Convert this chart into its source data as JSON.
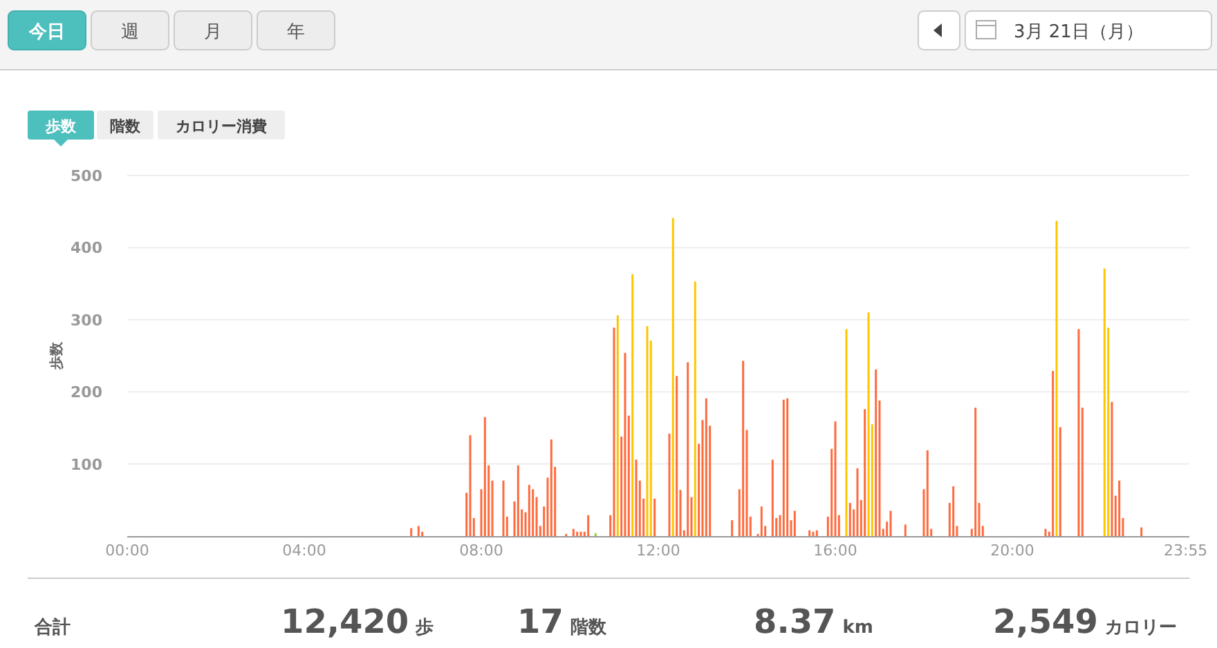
{
  "chart_data": {
    "type": "bar",
    "ylabel": "歩数",
    "xlim": [
      0,
      24
    ],
    "ylim": [
      0,
      500
    ],
    "xticks": [
      {
        "value": 0,
        "label": "00:00"
      },
      {
        "value": 4,
        "label": "04:00"
      },
      {
        "value": 8,
        "label": "08:00"
      },
      {
        "value": 12,
        "label": "12:00"
      },
      {
        "value": 16,
        "label": "16:00"
      },
      {
        "value": 20,
        "label": "20:00"
      },
      {
        "value": 23.917,
        "label": "23:55"
      }
    ],
    "yticks": [
      100,
      200,
      300,
      400,
      500
    ],
    "grid": "y",
    "series": [
      {
        "color": "#ff6a3d",
        "x": [
          6.417,
          6.583,
          6.667,
          7.667,
          7.75,
          7.833,
          8,
          8.083,
          8.167,
          8.25,
          8.5,
          8.583,
          8.75,
          8.833,
          8.917,
          9,
          9.083,
          9.167,
          9.25,
          9.333,
          9.417,
          9.5,
          9.583,
          9.667,
          9.917,
          10.083,
          10.167,
          10.25,
          10.333,
          10.417,
          10.917,
          11,
          11.167,
          11.25,
          11.333,
          11.5,
          11.583,
          11.667,
          11.917,
          12.25,
          12.417,
          12.5,
          12.583,
          12.667,
          12.75,
          12.917,
          13,
          13.083,
          13.167,
          13.667,
          13.833,
          13.917,
          14,
          14.083,
          14.25,
          14.333,
          14.417,
          14.583,
          14.667,
          14.75,
          14.833,
          14.917,
          15,
          15.083,
          15.417,
          15.5,
          15.583,
          15.833,
          15.917,
          16,
          16.083,
          16.333,
          16.417,
          16.5,
          16.583,
          16.667,
          16.917,
          17,
          17.083,
          17.167,
          17.25,
          17.583,
          18,
          18.083,
          18.167,
          18.583,
          18.667,
          18.75,
          19.083,
          19.167,
          19.25,
          19.333,
          20.75,
          20.833,
          20.917,
          21.083,
          21.5,
          21.583,
          22.25,
          22.333,
          22.417,
          22.5,
          22.917
        ],
        "values": [
          11,
          14,
          6,
          60,
          140,
          25,
          65,
          165,
          98,
          77,
          77,
          27,
          48,
          98,
          37,
          33,
          71,
          65,
          54,
          14,
          41,
          81,
          134,
          96,
          3,
          10,
          6,
          6,
          6,
          29,
          29,
          289,
          138,
          254,
          167,
          106,
          77,
          52,
          52,
          142,
          222,
          64,
          8,
          241,
          54,
          128,
          161,
          191,
          153,
          22,
          65,
          243,
          147,
          27,
          3,
          41,
          14,
          106,
          25,
          29,
          189,
          191,
          22,
          35,
          8,
          6,
          8,
          27,
          121,
          159,
          29,
          46,
          37,
          94,
          50,
          176,
          231,
          188,
          10,
          20,
          35,
          16,
          65,
          119,
          10,
          46,
          69,
          14,
          10,
          178,
          46,
          14,
          10,
          6,
          229,
          151,
          287,
          178,
          186,
          56,
          77,
          25,
          12
        ]
      },
      {
        "color": "#ffc600",
        "x": [
          11.083,
          11.417,
          11.75,
          11.833,
          12.333,
          12.833,
          16.25,
          16.75,
          16.833,
          21,
          22.083,
          22.167
        ],
        "values": [
          306,
          363,
          291,
          271,
          441,
          353,
          287,
          310,
          155,
          437,
          371,
          289
        ]
      },
      {
        "color": "#9acd32",
        "x": [
          10.583
        ],
        "values": [
          4
        ]
      }
    ],
    "annotations": [
      "今日",
      "週",
      "月",
      "年",
      "3月 21日（月）",
      "歩数",
      "階数",
      "カロリー消費",
      "合計",
      "12,420",
      "歩",
      "17",
      "階数",
      "8.37",
      "km",
      "2,549",
      "カロリー"
    ]
  }
}
